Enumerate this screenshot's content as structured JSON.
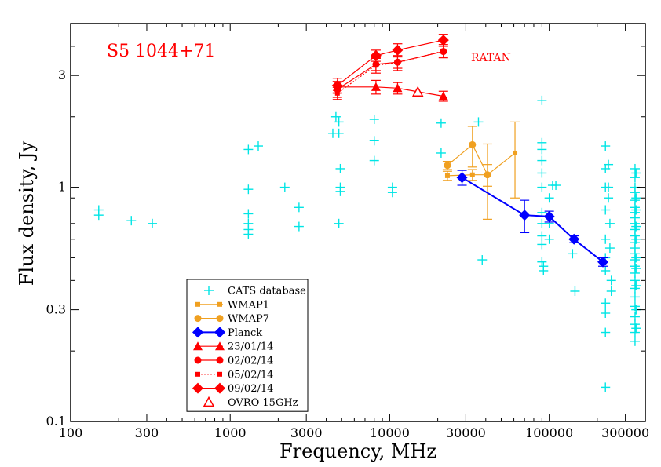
{
  "chart_data": {
    "type": "scatter",
    "title": "S5 1044+71",
    "annotation": "RATAN",
    "xlabel": "Frequency, MHz",
    "ylabel": "Flux density, Jy",
    "x_scale": "log",
    "y_scale": "log",
    "xlim": [
      100,
      400000
    ],
    "ylim": [
      0.1,
      5
    ],
    "x_ticks": [
      {
        "value": 100,
        "label": "100"
      },
      {
        "value": 300,
        "label": "300"
      },
      {
        "value": 1000,
        "label": "1000"
      },
      {
        "value": 3000,
        "label": "3000"
      },
      {
        "value": 10000,
        "label": "10000"
      },
      {
        "value": 30000,
        "label": "30000"
      },
      {
        "value": 100000,
        "label": "100000"
      },
      {
        "value": 300000,
        "label": "300000"
      }
    ],
    "y_ticks": [
      {
        "value": 0.1,
        "label": "0.1"
      },
      {
        "value": 0.3,
        "label": "0.3"
      },
      {
        "value": 1,
        "label": "1"
      },
      {
        "value": 3,
        "label": "3"
      }
    ],
    "colors": {
      "cats": "#00e5e5",
      "wmap": "#f0a020",
      "planck": "#0000ff",
      "ratan": "#ff0000",
      "title": "#ff0000"
    },
    "legend_position": "bottom-left",
    "series": [
      {
        "name": "CATS database",
        "marker": "plus",
        "color": "#00e5e5",
        "line": false,
        "points": [
          [
            150,
            0.8
          ],
          [
            150,
            0.76
          ],
          [
            240,
            0.72
          ],
          [
            325,
            0.7
          ],
          [
            1300,
            1.45
          ],
          [
            1300,
            0.98
          ],
          [
            1300,
            0.77
          ],
          [
            1300,
            0.7
          ],
          [
            1300,
            0.66
          ],
          [
            1300,
            0.63
          ],
          [
            1500,
            1.5
          ],
          [
            2200,
            1.0
          ],
          [
            2700,
            0.82
          ],
          [
            2700,
            0.68
          ],
          [
            4400,
            1.7
          ],
          [
            4600,
            2.0
          ],
          [
            4800,
            1.9
          ],
          [
            4800,
            1.7
          ],
          [
            4900,
            1.2
          ],
          [
            4900,
            1.0
          ],
          [
            4900,
            0.96
          ],
          [
            4800,
            0.7
          ],
          [
            8000,
            1.95
          ],
          [
            8000,
            1.58
          ],
          [
            8000,
            1.3
          ],
          [
            10400,
            1.0
          ],
          [
            10400,
            0.95
          ],
          [
            21000,
            1.88
          ],
          [
            21000,
            1.4
          ],
          [
            36000,
            1.9
          ],
          [
            38000,
            0.49
          ],
          [
            90000,
            2.35
          ],
          [
            90000,
            1.55
          ],
          [
            90000,
            1.45
          ],
          [
            90000,
            1.3
          ],
          [
            90000,
            1.15
          ],
          [
            90000,
            1.0
          ],
          [
            90000,
            0.78
          ],
          [
            90000,
            0.7
          ],
          [
            90000,
            0.62
          ],
          [
            90000,
            0.57
          ],
          [
            90000,
            0.48
          ],
          [
            92000,
            0.46
          ],
          [
            92000,
            0.44
          ],
          [
            100000,
            0.9
          ],
          [
            100000,
            0.7
          ],
          [
            100000,
            0.6
          ],
          [
            105000,
            1.02
          ],
          [
            110000,
            1.02
          ],
          [
            140000,
            0.52
          ],
          [
            145000,
            0.36
          ],
          [
            225000,
            1.5
          ],
          [
            225000,
            1.2
          ],
          [
            225000,
            1.0
          ],
          [
            225000,
            0.8
          ],
          [
            225000,
            0.6
          ],
          [
            225000,
            0.5
          ],
          [
            225000,
            0.44
          ],
          [
            225000,
            0.32
          ],
          [
            225000,
            0.29
          ],
          [
            225000,
            0.24
          ],
          [
            225000,
            0.14
          ],
          [
            235000,
            1.25
          ],
          [
            235000,
            1.0
          ],
          [
            235000,
            0.9
          ],
          [
            240000,
            0.7
          ],
          [
            240000,
            0.55
          ],
          [
            245000,
            0.4
          ],
          [
            245000,
            0.36
          ],
          [
            345000,
            1.2
          ],
          [
            345000,
            1.1
          ],
          [
            345000,
            1.0
          ],
          [
            345000,
            0.95
          ],
          [
            345000,
            0.88
          ],
          [
            345000,
            0.82
          ],
          [
            345000,
            0.78
          ],
          [
            345000,
            0.74
          ],
          [
            345000,
            0.7
          ],
          [
            345000,
            0.66
          ],
          [
            345000,
            0.62
          ],
          [
            345000,
            0.58
          ],
          [
            345000,
            0.55
          ],
          [
            345000,
            0.52
          ],
          [
            345000,
            0.49
          ],
          [
            345000,
            0.46
          ],
          [
            345000,
            0.43
          ],
          [
            345000,
            0.4
          ],
          [
            345000,
            0.37
          ],
          [
            345000,
            0.34
          ],
          [
            345000,
            0.31
          ],
          [
            345000,
            0.28
          ],
          [
            345000,
            0.26
          ],
          [
            345000,
            0.24
          ],
          [
            345000,
            0.22
          ],
          [
            350000,
            1.15
          ],
          [
            350000,
            0.9
          ],
          [
            350000,
            0.8
          ],
          [
            350000,
            0.68
          ],
          [
            350000,
            0.6
          ],
          [
            350000,
            0.5
          ],
          [
            350000,
            0.45
          ],
          [
            350000,
            0.38
          ],
          [
            350000,
            0.3
          ],
          [
            350000,
            0.25
          ]
        ]
      },
      {
        "name": "WMAP1",
        "marker": "square",
        "color": "#f0a020",
        "line": true,
        "points": [
          {
            "x": 23000,
            "y": 1.12,
            "err": 0.05
          },
          {
            "x": 33000,
            "y": 1.13,
            "err": 0.06
          },
          {
            "x": 41000,
            "y": 1.13,
            "err": 0.12
          },
          {
            "x": 61000,
            "y": 1.4,
            "err": 0.5
          }
        ]
      },
      {
        "name": "WMAP7",
        "marker": "circle",
        "color": "#f0a020",
        "line": true,
        "points": [
          {
            "x": 23000,
            "y": 1.24,
            "err": 0.05
          },
          {
            "x": 33000,
            "y": 1.52,
            "err": 0.3
          },
          {
            "x": 41000,
            "y": 1.13,
            "err": 0.4
          }
        ]
      },
      {
        "name": "Planck",
        "marker": "diamond",
        "color": "#0000ff",
        "line": true,
        "points": [
          {
            "x": 28400,
            "y": 1.1,
            "err": 0.08
          },
          {
            "x": 70000,
            "y": 0.76,
            "err": 0.12
          },
          {
            "x": 100000,
            "y": 0.75,
            "err": 0.04
          },
          {
            "x": 143000,
            "y": 0.6,
            "err": 0.02
          },
          {
            "x": 217000,
            "y": 0.48,
            "err": 0.02
          }
        ]
      },
      {
        "name": "23/01/14",
        "marker": "triangle",
        "color": "#ff0000",
        "line": true,
        "points": [
          {
            "x": 4700,
            "y": 2.68,
            "err": 0.15
          },
          {
            "x": 8200,
            "y": 2.68,
            "err": 0.18
          },
          {
            "x": 11200,
            "y": 2.65,
            "err": 0.15
          },
          {
            "x": 21700,
            "y": 2.45,
            "err": 0.12
          }
        ]
      },
      {
        "name": "02/02/14",
        "marker": "circle",
        "color": "#ff0000",
        "line": true,
        "points": [
          {
            "x": 4700,
            "y": 2.62,
            "err": 0.2
          },
          {
            "x": 8200,
            "y": 3.35,
            "err": 0.2
          },
          {
            "x": 11200,
            "y": 3.42,
            "err": 0.2
          },
          {
            "x": 21700,
            "y": 3.8,
            "err": 0.2
          }
        ]
      },
      {
        "name": "05/02/14",
        "marker": "square",
        "color": "#ff0000",
        "line": "dotted",
        "points": [
          {
            "x": 4700,
            "y": 2.52,
            "err": 0.15
          },
          {
            "x": 8200,
            "y": 3.32,
            "err": 0.25
          },
          {
            "x": 11200,
            "y": 3.4,
            "err": 0.25
          },
          {
            "x": 21700,
            "y": 3.82,
            "err": 0.25
          }
        ]
      },
      {
        "name": "09/02/14",
        "marker": "diamond",
        "color": "#ff0000",
        "line": true,
        "points": [
          {
            "x": 4700,
            "y": 2.72,
            "err": 0.2
          },
          {
            "x": 8200,
            "y": 3.65,
            "err": 0.2
          },
          {
            "x": 11200,
            "y": 3.85,
            "err": 0.25
          },
          {
            "x": 21700,
            "y": 4.25,
            "err": 0.25
          }
        ]
      },
      {
        "name": "OVRO 15GHz",
        "marker": "triangle-open",
        "color": "#ff0000",
        "line": false,
        "points": [
          {
            "x": 15000,
            "y": 2.55,
            "err": 0
          }
        ]
      }
    ]
  }
}
